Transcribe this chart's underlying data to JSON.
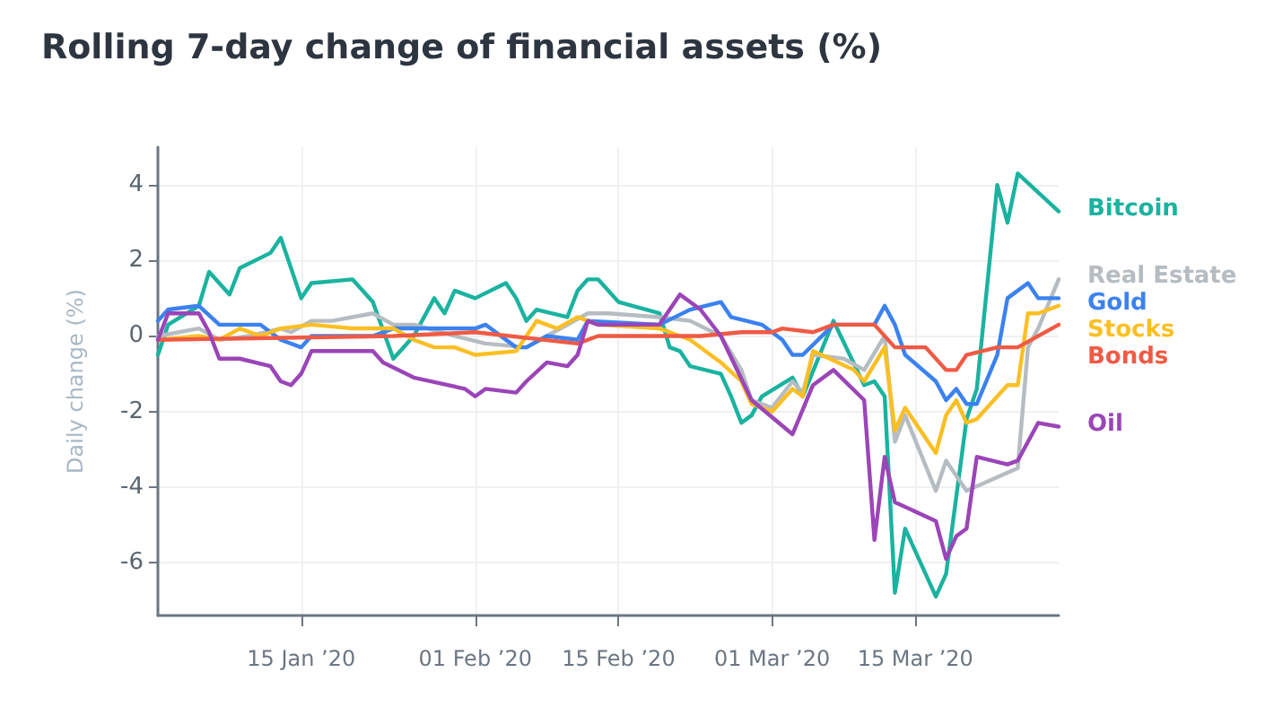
{
  "chart_data": {
    "type": "line",
    "title": "Rolling 7-day change of financial assets (%)",
    "ylabel": "Daily change (%)",
    "xlim": [
      "2020-01-01",
      "2020-03-29"
    ],
    "ylim": [
      -7.4,
      5
    ],
    "yticks": [
      -6,
      -4,
      -2,
      0,
      2,
      4
    ],
    "xticks": [
      {
        "value": "2020-01-15",
        "label": "15 Jan ’20"
      },
      {
        "value": "2020-02-01",
        "label": "01 Feb ’20"
      },
      {
        "value": "2020-02-15",
        "label": "15 Feb ’20"
      },
      {
        "value": "2020-03-01",
        "label": "01 Mar ’20"
      },
      {
        "value": "2020-03-15",
        "label": "15 Mar ’20"
      }
    ],
    "grid": true,
    "marker": "none",
    "line_style": "solid",
    "series": [
      {
        "name": "Bitcoin",
        "color": "#1ab3a0",
        "x": [
          "2020-01-01",
          "2020-01-02",
          "2020-01-05",
          "2020-01-06",
          "2020-01-08",
          "2020-01-09",
          "2020-01-12",
          "2020-01-13",
          "2020-01-15",
          "2020-01-16",
          "2020-01-20",
          "2020-01-22",
          "2020-01-24",
          "2020-01-26",
          "2020-01-28",
          "2020-01-29",
          "2020-01-30",
          "2020-02-01",
          "2020-02-04",
          "2020-02-05",
          "2020-02-06",
          "2020-02-07",
          "2020-02-10",
          "2020-02-11",
          "2020-02-12",
          "2020-02-13",
          "2020-02-15",
          "2020-02-19",
          "2020-02-20",
          "2020-02-21",
          "2020-02-22",
          "2020-02-25",
          "2020-02-26",
          "2020-02-27",
          "2020-02-28",
          "2020-02-29",
          "2020-03-03",
          "2020-03-04",
          "2020-03-07",
          "2020-03-10",
          "2020-03-11",
          "2020-03-12",
          "2020-03-13",
          "2020-03-14",
          "2020-03-17",
          "2020-03-18",
          "2020-03-20",
          "2020-03-21",
          "2020-03-23",
          "2020-03-24",
          "2020-03-25",
          "2020-03-29"
        ],
        "values": [
          -0.5,
          0.3,
          0.8,
          1.7,
          1.1,
          1.8,
          2.2,
          2.6,
          1.0,
          1.4,
          1.5,
          0.9,
          -0.6,
          0.0,
          1.0,
          0.6,
          1.2,
          1.0,
          1.4,
          1.0,
          0.4,
          0.7,
          0.5,
          1.2,
          1.5,
          1.5,
          0.9,
          0.6,
          -0.3,
          -0.4,
          -0.8,
          -1.0,
          -1.6,
          -2.3,
          -2.1,
          -1.6,
          -1.1,
          -1.6,
          0.4,
          -1.3,
          -1.2,
          -1.6,
          -6.8,
          -5.1,
          -6.9,
          -6.3,
          -2.2,
          -1.4,
          4.0,
          3.0,
          4.3,
          3.3
        ]
      },
      {
        "name": "Real Estate",
        "color": "#b5bcc2",
        "x": [
          "2020-01-01",
          "2020-01-05",
          "2020-01-07",
          "2020-01-10",
          "2020-01-13",
          "2020-01-14",
          "2020-01-16",
          "2020-01-18",
          "2020-01-22",
          "2020-01-24",
          "2020-01-26",
          "2020-01-30",
          "2020-02-02",
          "2020-02-06",
          "2020-02-08",
          "2020-02-12",
          "2020-02-14",
          "2020-02-19",
          "2020-02-22",
          "2020-02-25",
          "2020-02-27",
          "2020-02-28",
          "2020-03-01",
          "2020-03-03",
          "2020-03-04",
          "2020-03-05",
          "2020-03-08",
          "2020-03-10",
          "2020-03-12",
          "2020-03-13",
          "2020-03-14",
          "2020-03-17",
          "2020-03-18",
          "2020-03-20",
          "2020-03-25",
          "2020-03-26",
          "2020-03-27",
          "2020-03-29"
        ],
        "values": [
          0.0,
          0.2,
          -0.1,
          0.0,
          0.2,
          0.1,
          0.4,
          0.4,
          0.6,
          0.3,
          0.3,
          0.0,
          -0.2,
          -0.3,
          0.0,
          0.6,
          0.6,
          0.5,
          0.4,
          0.0,
          -0.9,
          -1.7,
          -1.9,
          -1.2,
          -1.5,
          -0.5,
          -0.6,
          -0.9,
          0.0,
          -2.8,
          -2.1,
          -4.1,
          -3.3,
          -4.1,
          -3.5,
          -0.3,
          0.2,
          1.5
        ]
      },
      {
        "name": "Gold",
        "color": "#3b82f0",
        "x": [
          "2020-01-01",
          "2020-01-02",
          "2020-01-05",
          "2020-01-07",
          "2020-01-11",
          "2020-01-13",
          "2020-01-15",
          "2020-01-16",
          "2020-01-22",
          "2020-01-24",
          "2020-02-01",
          "2020-02-02",
          "2020-02-05",
          "2020-02-06",
          "2020-02-08",
          "2020-02-11",
          "2020-02-12",
          "2020-02-19",
          "2020-02-22",
          "2020-02-25",
          "2020-02-26",
          "2020-02-29",
          "2020-03-02",
          "2020-03-03",
          "2020-03-04",
          "2020-03-07",
          "2020-03-11",
          "2020-03-12",
          "2020-03-13",
          "2020-03-14",
          "2020-03-17",
          "2020-03-18",
          "2020-03-19",
          "2020-03-20",
          "2020-03-21",
          "2020-03-23",
          "2020-03-24",
          "2020-03-26",
          "2020-03-27",
          "2020-03-29"
        ],
        "values": [
          0.4,
          0.7,
          0.8,
          0.3,
          0.3,
          -0.1,
          -0.3,
          0.0,
          0.0,
          0.2,
          0.2,
          0.3,
          -0.3,
          -0.3,
          0.0,
          -0.1,
          0.4,
          0.3,
          0.7,
          0.9,
          0.5,
          0.3,
          -0.1,
          -0.5,
          -0.5,
          0.3,
          0.3,
          0.8,
          0.3,
          -0.5,
          -1.2,
          -1.7,
          -1.4,
          -1.8,
          -1.8,
          -0.5,
          1.0,
          1.4,
          1.0,
          1.0
        ]
      },
      {
        "name": "Stocks",
        "color": "#fbbf24",
        "x": [
          "2020-01-01",
          "2020-01-05",
          "2020-01-07",
          "2020-01-09",
          "2020-01-11",
          "2020-01-13",
          "2020-01-16",
          "2020-01-20",
          "2020-01-24",
          "2020-01-26",
          "2020-01-28",
          "2020-01-30",
          "2020-02-01",
          "2020-02-05",
          "2020-02-07",
          "2020-02-09",
          "2020-02-11",
          "2020-02-13",
          "2020-02-19",
          "2020-02-22",
          "2020-02-25",
          "2020-02-27",
          "2020-02-28",
          "2020-03-01",
          "2020-03-03",
          "2020-03-04",
          "2020-03-05",
          "2020-03-09",
          "2020-03-10",
          "2020-03-12",
          "2020-03-13",
          "2020-03-14",
          "2020-03-17",
          "2020-03-18",
          "2020-03-19",
          "2020-03-20",
          "2020-03-21",
          "2020-03-24",
          "2020-03-25",
          "2020-03-26",
          "2020-03-27",
          "2020-03-29"
        ],
        "values": [
          -0.1,
          0.0,
          -0.1,
          0.2,
          0.0,
          0.2,
          0.3,
          0.2,
          0.2,
          -0.1,
          -0.3,
          -0.3,
          -0.5,
          -0.4,
          0.4,
          0.2,
          0.5,
          0.3,
          0.2,
          -0.1,
          -0.7,
          -1.2,
          -1.8,
          -2.0,
          -1.4,
          -1.6,
          -0.4,
          -0.9,
          -1.2,
          -0.3,
          -2.5,
          -1.9,
          -3.1,
          -2.1,
          -1.7,
          -2.3,
          -2.2,
          -1.3,
          -1.3,
          0.6,
          0.6,
          0.8
        ]
      },
      {
        "name": "Bonds",
        "color": "#f05a44",
        "x": [
          "2020-01-01",
          "2020-01-24",
          "2020-02-01",
          "2020-02-11",
          "2020-02-13",
          "2020-02-23",
          "2020-02-27",
          "2020-03-01",
          "2020-03-02",
          "2020-03-05",
          "2020-03-07",
          "2020-03-11",
          "2020-03-13",
          "2020-03-16",
          "2020-03-18",
          "2020-03-19",
          "2020-03-20",
          "2020-03-23",
          "2020-03-25",
          "2020-03-29"
        ],
        "values": [
          -0.1,
          0.0,
          0.1,
          -0.2,
          0.0,
          0.0,
          0.1,
          0.1,
          0.2,
          0.1,
          0.3,
          0.3,
          -0.3,
          -0.3,
          -0.9,
          -0.9,
          -0.5,
          -0.3,
          -0.3,
          0.3
        ]
      },
      {
        "name": "Oil",
        "color": "#9b45b8",
        "x": [
          "2020-01-01",
          "2020-01-02",
          "2020-01-05",
          "2020-01-06",
          "2020-01-07",
          "2020-01-09",
          "2020-01-12",
          "2020-01-13",
          "2020-01-14",
          "2020-01-15",
          "2020-01-16",
          "2020-01-22",
          "2020-01-23",
          "2020-01-26",
          "2020-01-31",
          "2020-02-01",
          "2020-02-02",
          "2020-02-05",
          "2020-02-06",
          "2020-02-08",
          "2020-02-10",
          "2020-02-11",
          "2020-02-12",
          "2020-02-13",
          "2020-02-19",
          "2020-02-21",
          "2020-02-23",
          "2020-02-25",
          "2020-02-28",
          "2020-03-03",
          "2020-03-05",
          "2020-03-07",
          "2020-03-10",
          "2020-03-11",
          "2020-03-12",
          "2020-03-13",
          "2020-03-17",
          "2020-03-18",
          "2020-03-19",
          "2020-03-20",
          "2020-03-21",
          "2020-03-24",
          "2020-03-25",
          "2020-03-27",
          "2020-03-29"
        ],
        "values": [
          -0.1,
          0.6,
          0.6,
          0.1,
          -0.6,
          -0.6,
          -0.8,
          -1.2,
          -1.3,
          -1.0,
          -0.4,
          -0.4,
          -0.7,
          -1.1,
          -1.4,
          -1.6,
          -1.4,
          -1.5,
          -1.2,
          -0.7,
          -0.8,
          -0.5,
          0.4,
          0.3,
          0.3,
          1.1,
          0.7,
          0.0,
          -1.7,
          -2.6,
          -1.3,
          -0.9,
          -1.7,
          -5.4,
          -3.2,
          -4.4,
          -4.9,
          -5.9,
          -5.3,
          -5.1,
          -3.2,
          -3.4,
          -3.3,
          -2.3,
          -2.4
        ]
      }
    ]
  }
}
